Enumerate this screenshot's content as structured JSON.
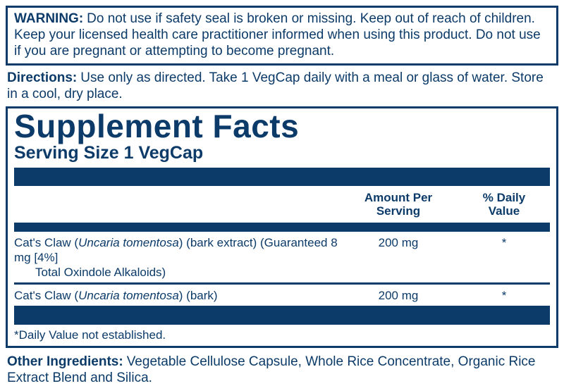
{
  "colors": {
    "navy": "#0c3b69",
    "background": "#ffffff"
  },
  "warning": {
    "label": "WARNING:",
    "text": "Do not use if safety seal is broken or missing. Keep out of reach of children. Keep your licensed health care practitioner informed when using this product. Do not use if you are pregnant or attempting to become pregnant."
  },
  "directions": {
    "label": "Directions:",
    "text": "Use only as directed. Take 1 VegCap daily with a meal or glass of water. Store in a cool, dry place."
  },
  "panel": {
    "title": "Supplement Facts",
    "serving_size": "Serving Size 1 VegCap",
    "columns": {
      "amount": "Amount Per\nServing",
      "daily_value": "% Daily\nValue"
    },
    "rows": [
      {
        "pre": "Cat's Claw (",
        "species": "Uncaria tomentosa",
        "post": ") (bark extract) (Guaranteed 8 mg [4%]",
        "cont": "Total Oxindole Alkaloids)",
        "amount": "200 mg",
        "daily_value": "*"
      },
      {
        "pre": "Cat's Claw (",
        "species": "Uncaria tomentosa",
        "post": ") (bark)",
        "amount": "200 mg",
        "daily_value": "*"
      }
    ],
    "footnote": "*Daily Value not established."
  },
  "other_ingredients": {
    "label": "Other Ingredients:",
    "text": "Vegetable Cellulose Capsule, Whole Rice Concentrate, Organic Rice Extract Blend and Silica."
  }
}
